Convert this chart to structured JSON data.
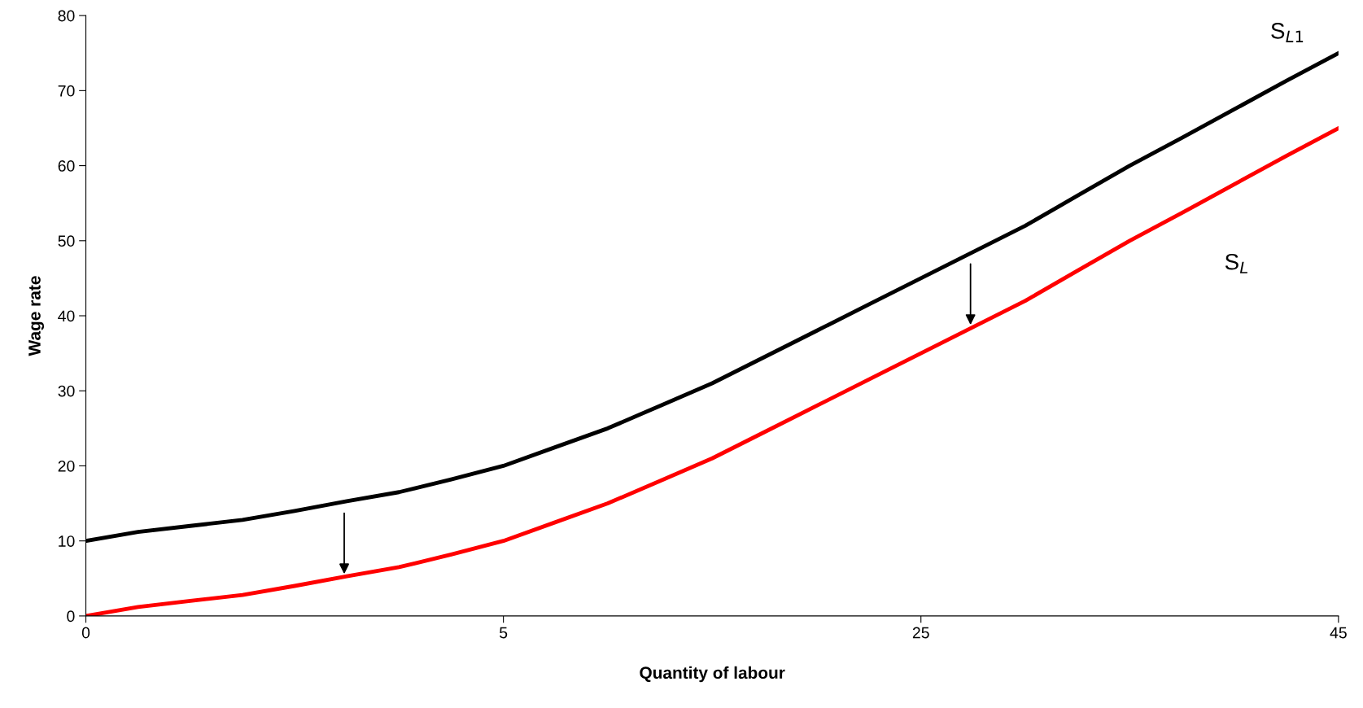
{
  "chart_data": {
    "type": "line",
    "xlabel": "Quantity of labour",
    "ylabel": "Wage rate",
    "categories": [
      "0",
      null,
      null,
      null,
      null,
      null,
      null,
      null,
      "5",
      null,
      null,
      null,
      null,
      null,
      null,
      null,
      "25",
      null,
      null,
      null,
      null,
      null,
      null,
      null,
      "45"
    ],
    "series": [
      {
        "name": "S$_{L1}$",
        "color": "#000000",
        "values": [
          10,
          11.2,
          12,
          12.8,
          14,
          15.3,
          16.5,
          18.2,
          20,
          22.5,
          25,
          28,
          31,
          34.5,
          38,
          41.5,
          45,
          48.5,
          52,
          56,
          60,
          63.7,
          67.5,
          71.3,
          75
        ]
      },
      {
        "name": "S$_{L}$",
        "color": "#ff0000",
        "values": [
          0,
          1.2,
          2,
          2.8,
          4,
          5.3,
          6.5,
          8.2,
          10,
          12.5,
          15,
          18,
          21,
          24.5,
          28,
          31.5,
          35,
          38.5,
          42,
          46,
          50,
          53.7,
          57.5,
          61.3,
          65
        ]
      }
    ],
    "ylim": [
      0,
      80
    ],
    "yticks": [
      0,
      10,
      20,
      30,
      40,
      50,
      60,
      70,
      80
    ],
    "grid": false,
    "legend": false,
    "marker": "none",
    "line_style": "solid"
  }
}
